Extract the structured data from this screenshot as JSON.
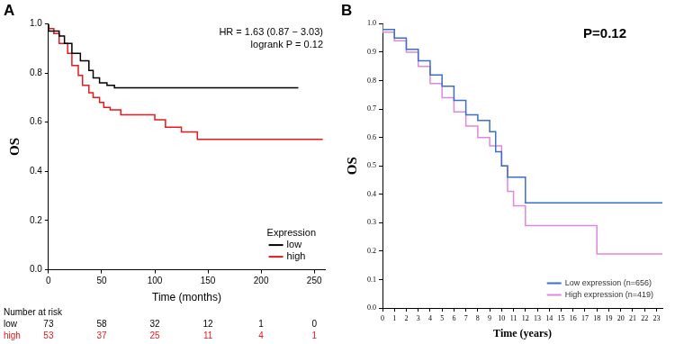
{
  "chart_data": [
    {
      "type": "line",
      "title": "A",
      "x_label": "Time (months)",
      "y_label": "OS",
      "xlim": [
        0,
        260
      ],
      "xticks": [
        0,
        50,
        100,
        150,
        200,
        250
      ],
      "ylim": [
        0,
        1
      ],
      "yticks": [
        {
          "value": 0,
          "label": "0.0"
        },
        {
          "value": 0.2,
          "label": "0.2"
        },
        {
          "value": 0.4,
          "label": "0.4"
        },
        {
          "value": 0.6,
          "label": "0.6"
        },
        {
          "value": 0.8,
          "label": "0.8"
        },
        {
          "value": 1,
          "label": "1.0"
        }
      ],
      "grid": false,
      "legend": "lower right",
      "legend_title": "Expression",
      "annotations": [
        "HR = 1.63 (0.87 − 3.03)",
        "logrank P = 0.12"
      ],
      "series": [
        {
          "name": "low",
          "color": "#000000",
          "line_style": "steps",
          "x": [
            0,
            10,
            15,
            22,
            30,
            38,
            42,
            48,
            55,
            62,
            70,
            80,
            235
          ],
          "values": [
            1,
            0.97,
            0.95,
            0.92,
            0.88,
            0.85,
            0.81,
            0.78,
            0.76,
            0.75,
            0.74,
            0.74,
            0.74
          ]
        },
        {
          "name": "high",
          "color": "#e41a1c",
          "line_style": "steps",
          "x": [
            0,
            5,
            10,
            18,
            22,
            28,
            32,
            38,
            42,
            48,
            52,
            58,
            62,
            68,
            100,
            110,
            125,
            140,
            150,
            258
          ],
          "values": [
            1,
            0.98,
            0.96,
            0.92,
            0.88,
            0.83,
            0.79,
            0.75,
            0.72,
            0.7,
            0.68,
            0.66,
            0.65,
            0.65,
            0.63,
            0.61,
            0.58,
            0.56,
            0.53,
            0.53
          ]
        }
      ],
      "risk_table": {
        "title": "Number at risk",
        "times": [
          0,
          50,
          100,
          150,
          200,
          250
        ],
        "rows": [
          {
            "name": "low",
            "color": "#000000",
            "values": [
              73,
              58,
              32,
              12,
              1,
              0
            ]
          },
          {
            "name": "high",
            "color": "#e41a1c",
            "values": [
              53,
              37,
              25,
              11,
              4,
              1
            ]
          }
        ]
      }
    },
    {
      "type": "line",
      "title": "B",
      "x_label": "Time (years)",
      "y_label": "OS",
      "xlim": [
        0,
        23.5
      ],
      "xticks": [
        0,
        1,
        2,
        3,
        4,
        5,
        6,
        7,
        8,
        9,
        10,
        11,
        12,
        13,
        14,
        15,
        16,
        17,
        18,
        19,
        20,
        21,
        22,
        23
      ],
      "ylim": [
        0,
        1
      ],
      "yticks": [
        {
          "value": 0,
          "label": "0.0"
        },
        {
          "value": 0.1,
          "label": "0.1"
        },
        {
          "value": 0.2,
          "label": "0.2"
        },
        {
          "value": 0.3,
          "label": "0.3"
        },
        {
          "value": 0.4,
          "label": "0.4"
        },
        {
          "value": 0.5,
          "label": "0.5"
        },
        {
          "value": 0.6,
          "label": "0.6"
        },
        {
          "value": 0.7,
          "label": "0.7"
        },
        {
          "value": 0.8,
          "label": "0.8"
        },
        {
          "value": 0.9,
          "label": "0.9"
        },
        {
          "value": 1,
          "label": "1.0"
        }
      ],
      "grid": false,
      "legend": "lower right",
      "annotations": [
        "P=0.12"
      ],
      "series": [
        {
          "name": "Low expression (n=656)",
          "color": "#3b6fc9",
          "line_style": "steps",
          "x": [
            0,
            1,
            2,
            3,
            4,
            5,
            6,
            7,
            8,
            9,
            9.5,
            10,
            10.5,
            12,
            18,
            23.5
          ],
          "values": [
            1,
            0.98,
            0.95,
            0.91,
            0.87,
            0.82,
            0.78,
            0.73,
            0.68,
            0.66,
            0.62,
            0.55,
            0.5,
            0.46,
            0.37,
            0.37
          ]
        },
        {
          "name": "High expression (n=419)",
          "color": "#dd88e0",
          "line_style": "steps",
          "x": [
            0,
            1,
            2,
            3,
            4,
            5,
            6,
            7,
            8,
            9,
            10,
            10.5,
            11,
            12,
            18,
            20.5,
            23.5
          ],
          "values": [
            1,
            0.97,
            0.94,
            0.9,
            0.85,
            0.79,
            0.74,
            0.69,
            0.64,
            0.6,
            0.57,
            0.5,
            0.41,
            0.36,
            0.29,
            0.19,
            0.19
          ]
        }
      ]
    }
  ]
}
